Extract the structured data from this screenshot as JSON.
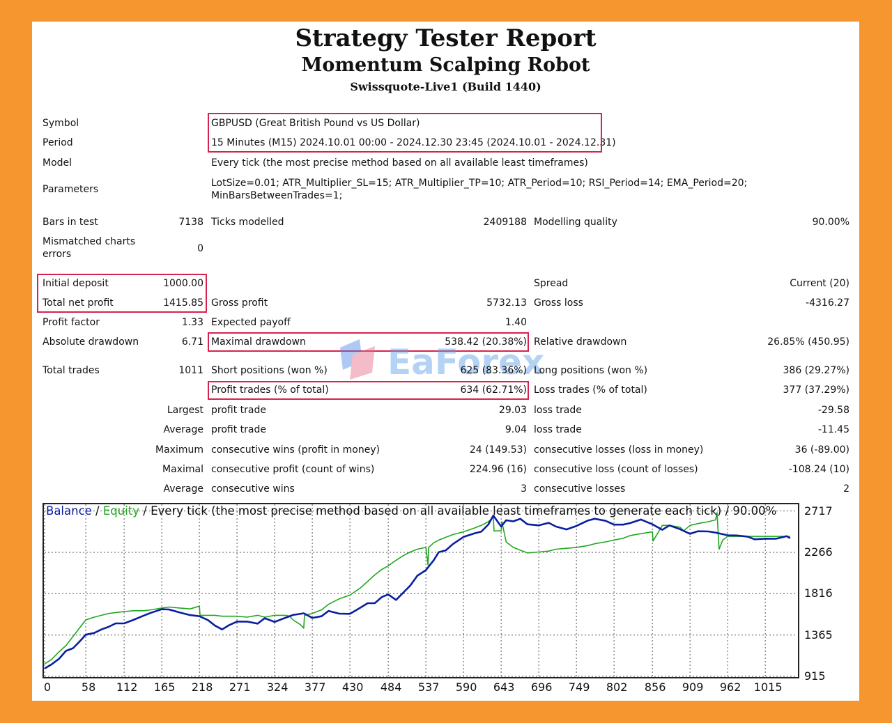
{
  "header": {
    "title": "Strategy Tester Report",
    "subtitle": "Momentum Scalping Robot",
    "server": "Swissquote-Live1 (Build 1440)"
  },
  "info": {
    "symbol_label": "Symbol",
    "symbol_value": "GBPUSD (Great British Pound vs US Dollar)",
    "period_label": "Period",
    "period_value": "15 Minutes (M15) 2024.10.01 00:00 - 2024.12.30 23:45 (2024.10.01 - 2024.12.31)",
    "model_label": "Model",
    "model_value": "Every tick (the most precise method based on all available least timeframes)",
    "parameters_label": "Parameters",
    "parameters_line1": "LotSize=0.01; ATR_Multiplier_SL=15; ATR_Multiplier_TP=10; ATR_Period=10; RSI_Period=14; EMA_Period=20;",
    "parameters_line2": "MinBarsBetweenTrades=1;"
  },
  "stats": {
    "bars_label": "Bars in test",
    "bars_value": "7138",
    "ticks_label": "Ticks modelled",
    "ticks_value": "2409188",
    "quality_label": "Modelling quality",
    "quality_value": "90.00%",
    "mismatch_label_1": "Mismatched charts",
    "mismatch_label_2": "errors",
    "mismatch_value": "0",
    "deposit_label": "Initial deposit",
    "deposit_value": "1000.00",
    "spread_label": "Spread",
    "spread_value": "Current (20)",
    "net_label": "Total net profit",
    "net_value": "1415.85",
    "gross_profit_label": "Gross profit",
    "gross_profit_value": "5732.13",
    "gross_loss_label": "Gross loss",
    "gross_loss_value": "-4316.27",
    "pf_label": "Profit factor",
    "pf_value": "1.33",
    "ep_label": "Expected payoff",
    "ep_value": "1.40",
    "abs_dd_label": "Absolute drawdown",
    "abs_dd_value": "6.71",
    "max_dd_label": "Maximal drawdown",
    "max_dd_value": "538.42 (20.38%)",
    "rel_dd_label": "Relative drawdown",
    "rel_dd_value": "26.85% (450.95)",
    "total_trades_label": "Total trades",
    "total_trades_value": "1011",
    "short_label": "Short positions (won %)",
    "short_value": "625 (83.36%)",
    "long_label": "Long positions (won %)",
    "long_value": "386 (29.27%)",
    "profit_trades_label": "Profit trades (% of total)",
    "profit_trades_value": "634 (62.71%)",
    "loss_trades_label": "Loss trades (% of total)",
    "loss_trades_value": "377 (37.29%)",
    "largest_label": "Largest",
    "largest_profit_label": "profit trade",
    "largest_profit_value": "29.03",
    "largest_loss_label": "loss trade",
    "largest_loss_value": "-29.58",
    "average_label": "Average",
    "average_profit_label": "profit trade",
    "average_profit_value": "9.04",
    "average_loss_label": "loss trade",
    "average_loss_value": "-11.45",
    "maximum_label": "Maximum",
    "max_wins_label": "consecutive wins (profit in money)",
    "max_wins_value": "24 (149.53)",
    "max_losses_label": "consecutive losses (loss in money)",
    "max_losses_value": "36 (-89.00)",
    "maximal_label": "Maximal",
    "maximal_profit_label": "consecutive profit (count of wins)",
    "maximal_profit_value": "224.96 (16)",
    "maximal_loss_label": "consecutive loss (count of losses)",
    "maximal_loss_value": "-108.24 (10)",
    "avg2_label": "Average",
    "avg_wins_label": "consecutive wins",
    "avg_wins_value": "3",
    "avg_losses_label": "consecutive losses",
    "avg_losses_value": "2"
  },
  "watermark": {
    "text": "EaForex"
  },
  "chart_data": {
    "type": "line",
    "legend": {
      "balance": "Balance",
      "sep1": " / ",
      "equity": "Equity",
      "rest": " / Every tick (the most precise method based on all available least timeframes to generate each tick) / 90.00%"
    },
    "x_ticks": [
      "0",
      "58",
      "112",
      "165",
      "218",
      "271",
      "324",
      "377",
      "430",
      "484",
      "537",
      "590",
      "643",
      "696",
      "749",
      "802",
      "856",
      "909",
      "962",
      "1015"
    ],
    "y_ticks": [
      "2717",
      "2266",
      "1816",
      "1365",
      "915"
    ],
    "xlim": [
      0,
      1060
    ],
    "ylim": [
      915,
      2790
    ],
    "colors": {
      "balance": "#0a1ea0",
      "equity": "#1fa81f"
    },
    "series": [
      {
        "name": "Balance",
        "x": [
          0,
          10,
          20,
          30,
          40,
          50,
          58,
          70,
          80,
          90,
          100,
          112,
          125,
          140,
          150,
          165,
          175,
          190,
          205,
          218,
          230,
          240,
          250,
          260,
          271,
          285,
          300,
          310,
          324,
          340,
          350,
          365,
          377,
          390,
          400,
          415,
          430,
          445,
          455,
          465,
          475,
          484,
          495,
          505,
          515,
          525,
          537,
          548,
          555,
          565,
          575,
          590,
          605,
          615,
          625,
          632,
          643,
          650,
          660,
          670,
          680,
          696,
          710,
          720,
          735,
          749,
          765,
          775,
          790,
          802,
          815,
          825,
          840,
          856,
          870,
          880,
          895,
          909,
          920,
          935,
          945,
          962,
          975,
          990,
          1000,
          1015,
          1030,
          1045,
          1050
        ],
        "y": [
          1000,
          1050,
          1100,
          1180,
          1230,
          1300,
          1360,
          1400,
          1430,
          1450,
          1480,
          1500,
          1530,
          1570,
          1620,
          1650,
          1640,
          1600,
          1590,
          1570,
          1520,
          1480,
          1430,
          1470,
          1500,
          1520,
          1490,
          1540,
          1520,
          1560,
          1580,
          1590,
          1560,
          1570,
          1620,
          1610,
          1600,
          1660,
          1700,
          1720,
          1780,
          1800,
          1760,
          1830,
          1900,
          2000,
          2080,
          2180,
          2260,
          2300,
          2360,
          2430,
          2460,
          2500,
          2570,
          2660,
          2560,
          2620,
          2600,
          2620,
          2580,
          2560,
          2580,
          2560,
          2520,
          2550,
          2600,
          2640,
          2610,
          2560,
          2580,
          2590,
          2620,
          2560,
          2520,
          2560,
          2510,
          2480,
          2500,
          2490,
          2470,
          2460,
          2450,
          2430,
          2420,
          2420,
          2410,
          2430,
          2420
        ]
      },
      {
        "name": "Equity",
        "x": [
          0,
          10,
          20,
          30,
          40,
          50,
          58,
          70,
          80,
          90,
          100,
          112,
          125,
          140,
          150,
          165,
          175,
          190,
          205,
          218,
          219,
          230,
          240,
          250,
          260,
          271,
          285,
          300,
          310,
          324,
          340,
          345,
          350,
          360,
          365,
          366,
          377,
          390,
          400,
          415,
          430,
          445,
          455,
          465,
          475,
          484,
          495,
          505,
          515,
          525,
          537,
          540,
          541,
          548,
          555,
          565,
          575,
          590,
          605,
          615,
          625,
          632,
          633,
          643,
          644,
          650,
          660,
          670,
          680,
          696,
          710,
          720,
          735,
          749,
          765,
          775,
          790,
          802,
          815,
          825,
          840,
          856,
          857,
          870,
          880,
          895,
          900,
          909,
          920,
          935,
          945,
          947,
          950,
          955,
          962,
          975,
          990,
          1000,
          1015,
          1030,
          1045,
          1050
        ],
        "y": [
          1050,
          1100,
          1180,
          1250,
          1350,
          1450,
          1530,
          1560,
          1580,
          1600,
          1610,
          1620,
          1630,
          1630,
          1640,
          1660,
          1670,
          1660,
          1650,
          1680,
          1580,
          1580,
          1580,
          1570,
          1570,
          1570,
          1560,
          1580,
          1560,
          1580,
          1580,
          1570,
          1530,
          1480,
          1440,
          1580,
          1600,
          1640,
          1700,
          1760,
          1800,
          1880,
          1950,
          2020,
          2080,
          2120,
          2180,
          2230,
          2270,
          2300,
          2320,
          2130,
          2320,
          2370,
          2400,
          2430,
          2460,
          2490,
          2530,
          2560,
          2600,
          2650,
          2500,
          2500,
          2600,
          2380,
          2320,
          2290,
          2260,
          2270,
          2280,
          2300,
          2310,
          2320,
          2340,
          2360,
          2380,
          2400,
          2420,
          2450,
          2470,
          2490,
          2390,
          2560,
          2560,
          2540,
          2500,
          2560,
          2580,
          2600,
          2620,
          2700,
          2300,
          2400,
          2440,
          2440,
          2440,
          2440,
          2440,
          2440,
          2440,
          2440
        ]
      }
    ]
  }
}
